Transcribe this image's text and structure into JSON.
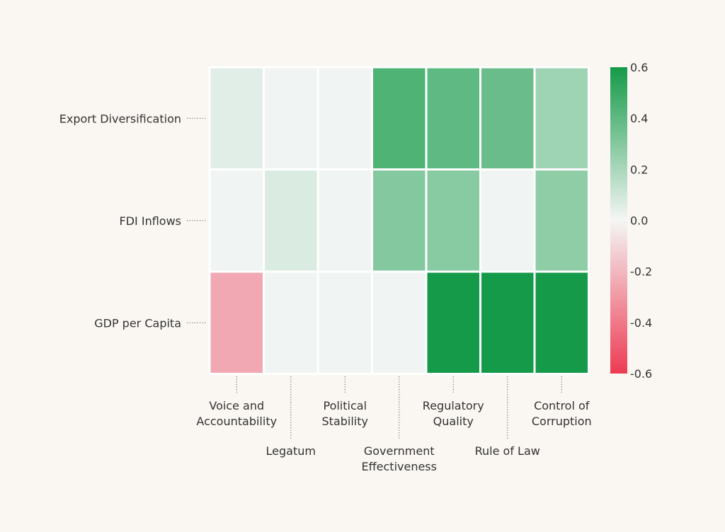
{
  "chart_data": {
    "type": "heatmap",
    "title": "",
    "rows": [
      "Export Diversification",
      "FDI Inflows",
      "GDP per Capita"
    ],
    "columns": [
      [
        "Voice and",
        "Accountability"
      ],
      [
        "Legatum"
      ],
      [
        "Political",
        "Stability"
      ],
      [
        "Government",
        "Effectiveness"
      ],
      [
        "Regulatory",
        "Quality"
      ],
      [
        "Rule of Law"
      ],
      [
        "Control of",
        "Corruption"
      ]
    ],
    "values": [
      [
        0.05,
        0.01,
        0.01,
        0.44,
        0.4,
        0.37,
        0.23
      ],
      [
        0.01,
        0.07,
        0.01,
        0.3,
        0.29,
        0.01,
        0.27
      ],
      [
        -0.25,
        0.01,
        0.01,
        0.01,
        0.6,
        0.6,
        0.6
      ]
    ],
    "colorbar": {
      "min": -0.6,
      "max": 0.6,
      "ticks": [
        0.6,
        0.4,
        0.2,
        0.0,
        -0.2,
        -0.4,
        -0.6
      ],
      "tick_labels": [
        "0.6",
        "0.4",
        "0.2",
        "0.0",
        "-0.2",
        "-0.4",
        "-0.6"
      ],
      "colors": {
        "negative": "#ed3b53",
        "neutral": "#f4f6f5",
        "positive": "#149a48"
      }
    },
    "background": "#faf7f2"
  }
}
